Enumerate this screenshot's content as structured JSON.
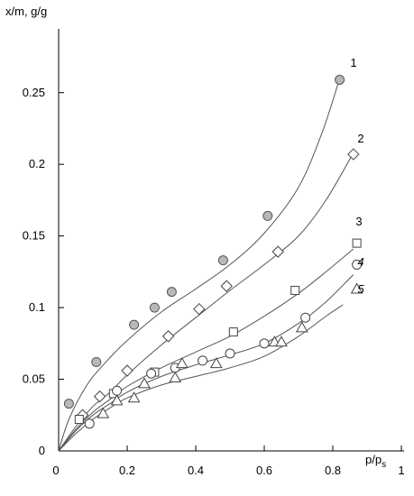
{
  "chart_data": {
    "type": "scatter",
    "title": "",
    "ylabel": "x/m, g/g",
    "xlabel_main": "p/p",
    "xlabel_sub": "s",
    "xlim": [
      0,
      1
    ],
    "ylim": [
      0,
      0.29
    ],
    "xticks": [
      0,
      0.2,
      0.4,
      0.6,
      0.8,
      1
    ],
    "xtick_labels": [
      "0",
      "0.2",
      "0.4",
      "0.6",
      "0.8",
      "1"
    ],
    "yticks": [
      0,
      0.05,
      0.1,
      0.15,
      0.2,
      0.25
    ],
    "ytick_labels": [
      "0",
      "0.05",
      "0.1",
      "0.15",
      "0.2",
      "0.25"
    ],
    "grid": false,
    "series": [
      {
        "name": "1",
        "marker": "filled-circle",
        "points": [
          [
            0.03,
            0.033
          ],
          [
            0.11,
            0.062
          ],
          [
            0.22,
            0.088
          ],
          [
            0.28,
            0.1
          ],
          [
            0.33,
            0.111
          ],
          [
            0.48,
            0.133
          ],
          [
            0.61,
            0.164
          ],
          [
            0.82,
            0.259
          ]
        ],
        "curve": [
          [
            0,
            0
          ],
          [
            0.03,
            0.022
          ],
          [
            0.08,
            0.045
          ],
          [
            0.13,
            0.06
          ],
          [
            0.2,
            0.077
          ],
          [
            0.3,
            0.097
          ],
          [
            0.4,
            0.113
          ],
          [
            0.5,
            0.13
          ],
          [
            0.6,
            0.152
          ],
          [
            0.7,
            0.184
          ],
          [
            0.77,
            0.223
          ],
          [
            0.82,
            0.26
          ]
        ]
      },
      {
        "name": "2",
        "marker": "open-diamond",
        "points": [
          [
            0.07,
            0.025
          ],
          [
            0.12,
            0.038
          ],
          [
            0.2,
            0.056
          ],
          [
            0.32,
            0.08
          ],
          [
            0.41,
            0.099
          ],
          [
            0.49,
            0.115
          ],
          [
            0.64,
            0.139
          ],
          [
            0.86,
            0.207
          ]
        ],
        "curve": [
          [
            0,
            0
          ],
          [
            0.05,
            0.017
          ],
          [
            0.1,
            0.031
          ],
          [
            0.15,
            0.041
          ],
          [
            0.2,
            0.053
          ],
          [
            0.3,
            0.074
          ],
          [
            0.4,
            0.093
          ],
          [
            0.5,
            0.112
          ],
          [
            0.6,
            0.13
          ],
          [
            0.7,
            0.15
          ],
          [
            0.78,
            0.175
          ],
          [
            0.86,
            0.208
          ]
        ]
      },
      {
        "name": "3",
        "marker": "open-square",
        "points": [
          [
            0.06,
            0.022
          ],
          [
            0.16,
            0.04
          ],
          [
            0.28,
            0.055
          ],
          [
            0.51,
            0.083
          ],
          [
            0.69,
            0.112
          ],
          [
            0.87,
            0.145
          ]
        ],
        "curve": [
          [
            0,
            0
          ],
          [
            0.05,
            0.015
          ],
          [
            0.1,
            0.027
          ],
          [
            0.15,
            0.036
          ],
          [
            0.2,
            0.045
          ],
          [
            0.3,
            0.058
          ],
          [
            0.4,
            0.069
          ],
          [
            0.5,
            0.08
          ],
          [
            0.6,
            0.094
          ],
          [
            0.7,
            0.11
          ],
          [
            0.78,
            0.125
          ],
          [
            0.86,
            0.141
          ]
        ]
      },
      {
        "name": "4",
        "marker": "open-circle",
        "points": [
          [
            0.09,
            0.019
          ],
          [
            0.17,
            0.042
          ],
          [
            0.27,
            0.054
          ],
          [
            0.34,
            0.058
          ],
          [
            0.42,
            0.063
          ],
          [
            0.5,
            0.068
          ],
          [
            0.6,
            0.075
          ],
          [
            0.72,
            0.093
          ],
          [
            0.87,
            0.13
          ]
        ],
        "curve": [
          [
            0,
            0
          ],
          [
            0.05,
            0.014
          ],
          [
            0.1,
            0.025
          ],
          [
            0.15,
            0.033
          ],
          [
            0.2,
            0.041
          ],
          [
            0.3,
            0.052
          ],
          [
            0.4,
            0.06
          ],
          [
            0.5,
            0.067
          ],
          [
            0.6,
            0.075
          ],
          [
            0.7,
            0.089
          ],
          [
            0.78,
            0.104
          ],
          [
            0.86,
            0.123
          ]
        ]
      },
      {
        "name": "5",
        "marker": "open-triangle",
        "points": [
          [
            0.13,
            0.026
          ],
          [
            0.17,
            0.035
          ],
          [
            0.22,
            0.037
          ],
          [
            0.25,
            0.047
          ],
          [
            0.34,
            0.051
          ],
          [
            0.36,
            0.061
          ],
          [
            0.46,
            0.061
          ],
          [
            0.63,
            0.076
          ],
          [
            0.65,
            0.076
          ],
          [
            0.71,
            0.086
          ],
          [
            0.87,
            0.113
          ]
        ],
        "curve": [
          [
            0,
            0
          ],
          [
            0.05,
            0.012
          ],
          [
            0.1,
            0.022
          ],
          [
            0.15,
            0.03
          ],
          [
            0.2,
            0.037
          ],
          [
            0.3,
            0.046
          ],
          [
            0.4,
            0.052
          ],
          [
            0.5,
            0.058
          ],
          [
            0.6,
            0.066
          ],
          [
            0.7,
            0.08
          ],
          [
            0.78,
            0.094
          ],
          [
            0.83,
            0.102
          ]
        ]
      }
    ]
  }
}
